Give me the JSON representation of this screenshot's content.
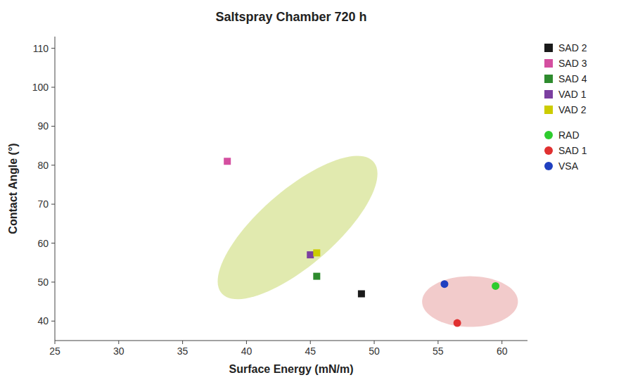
{
  "chart_data": {
    "type": "scatter",
    "title": "Saltspray Chamber 720 h",
    "x_label": "Surface Energy (mN/m)",
    "y_label": "Contact Angle (°)",
    "xlim": [
      25,
      62
    ],
    "ylim": [
      35,
      113
    ],
    "xticks": [
      25,
      30,
      35,
      40,
      45,
      50,
      55,
      60
    ],
    "yticks": [
      40,
      50,
      60,
      70,
      80,
      90,
      100,
      110
    ],
    "grid": false,
    "legend": "upper right",
    "series": [
      {
        "name": "SAD 2",
        "color": "#1a1a1a",
        "marker": "square",
        "x": [
          49.0
        ],
        "values": [
          47.0
        ]
      },
      {
        "name": "SAD 3",
        "color": "#d44fa0",
        "marker": "square",
        "x": [
          38.5
        ],
        "values": [
          81.0
        ]
      },
      {
        "name": "SAD 4",
        "color": "#2e8b2e",
        "marker": "square",
        "x": [
          45.5
        ],
        "values": [
          51.5
        ]
      },
      {
        "name": "VAD 1",
        "color": "#7b3fa0",
        "marker": "square",
        "x": [
          45.0
        ],
        "values": [
          57.0
        ]
      },
      {
        "name": "VAD 2",
        "color": "#cccc00",
        "marker": "square",
        "x": [
          45.5
        ],
        "values": [
          57.5
        ]
      },
      {
        "name": "RAD",
        "color": "#2ecc2e",
        "marker": "circle",
        "x": [
          59.5
        ],
        "values": [
          49.0
        ]
      },
      {
        "name": "SAD 1",
        "color": "#e03030",
        "marker": "circle",
        "x": [
          56.5
        ],
        "values": [
          39.5
        ]
      },
      {
        "name": "VSA",
        "color": "#2040c0",
        "marker": "circle",
        "x": [
          55.5
        ],
        "values": [
          49.5
        ]
      }
    ],
    "regions": [
      {
        "center_x": 44.0,
        "center_y": 64.0,
        "width": 8.0,
        "height": 38.0,
        "angle": -15,
        "color": "#c8d96e"
      },
      {
        "center_x": 57.5,
        "center_y": 45.0,
        "width": 7.5,
        "height": 13.0,
        "angle": 0,
        "color": "#e8a0a0"
      }
    ]
  }
}
